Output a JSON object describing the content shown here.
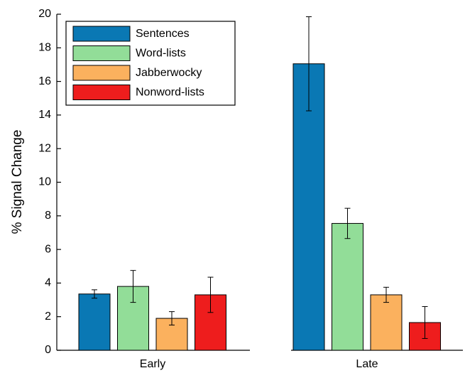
{
  "chart_data": {
    "type": "bar",
    "y_label": "% Signal Change",
    "categories": [
      "Early",
      "Late"
    ],
    "series": [
      {
        "name": "Sentences",
        "color": "#0a78b4",
        "values": [
          3.35,
          17.05
        ],
        "errors": [
          0.25,
          2.8
        ]
      },
      {
        "name": "Word-lists",
        "color": "#92dd98",
        "values": [
          3.8,
          7.55
        ],
        "errors": [
          0.95,
          0.9
        ]
      },
      {
        "name": "Jabberwocky",
        "color": "#fbb15e",
        "values": [
          1.9,
          3.3
        ],
        "errors": [
          0.4,
          0.45
        ]
      },
      {
        "name": "Nonword-lists",
        "color": "#ee1d1d",
        "values": [
          3.3,
          1.65
        ],
        "errors": [
          1.05,
          0.95
        ]
      }
    ],
    "ylim": [
      0,
      20
    ],
    "yticks": [
      0,
      2,
      4,
      6,
      8,
      10,
      12,
      14,
      16,
      18,
      20
    ],
    "legend": "upper-left"
  }
}
